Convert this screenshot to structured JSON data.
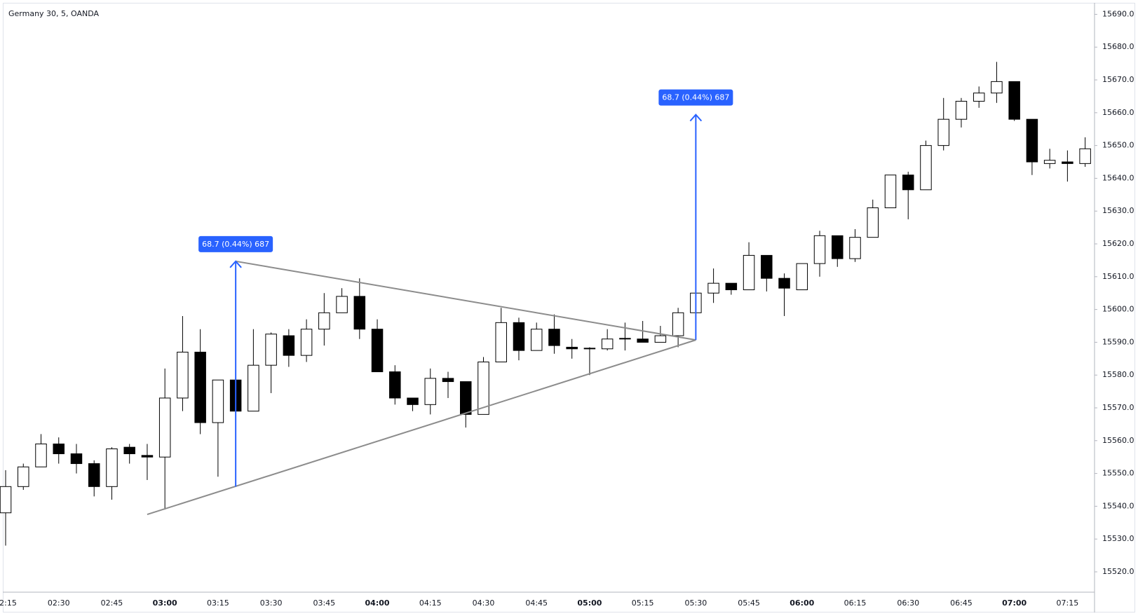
{
  "chart_data": {
    "type": "candlestick",
    "title": "Germany 30, 5, OANDA",
    "categories": [
      "02:15",
      null,
      null,
      "02:30",
      null,
      null,
      "02:45",
      null,
      null,
      "03:00",
      null,
      null,
      "03:15",
      null,
      null,
      "03:30",
      null,
      null,
      "03:45",
      null,
      null,
      "04:00",
      null,
      null,
      "04:15",
      null,
      null,
      "04:30",
      null,
      null,
      "04:45",
      null,
      null,
      "05:00",
      null,
      null,
      "05:15",
      null,
      null,
      "05:30",
      null,
      null,
      "05:45",
      null,
      null,
      "06:00",
      null,
      null,
      "06:15",
      null,
      null,
      "06:30",
      null,
      null,
      "06:45",
      null,
      null,
      "07:00",
      null,
      null,
      "07:15",
      null
    ],
    "open": [
      15538,
      15546,
      15552,
      15559,
      15556,
      15553,
      15546,
      15558,
      15555.5,
      15555,
      15573,
      15587,
      15565.5,
      15578.5,
      15569,
      15583,
      15592,
      15586,
      15594,
      15599,
      15604,
      15594,
      15581,
      15573,
      15571,
      15579,
      15578,
      15568,
      15584,
      15596,
      15587.5,
      15594,
      15588.5,
      15588,
      15588,
      15591,
      15591,
      15590,
      15592,
      15599,
      15605,
      15608,
      15606,
      15616.5,
      15609.5,
      15606,
      15614,
      15622.5,
      15615.5,
      15622,
      15631,
      15641,
      15636.5,
      15650,
      15658,
      15663.5,
      15666,
      15669.5,
      15658,
      15644.5,
      15645,
      15644.5
    ],
    "high": [
      15551,
      15553,
      15562,
      15561,
      15559,
      15554,
      15558,
      15559,
      15559,
      15582,
      15598,
      15594,
      15578.5,
      15580,
      15594,
      15593,
      15594,
      15597,
      15605,
      15606.5,
      15609.5,
      15597,
      15583,
      15573,
      15582,
      15581,
      15578,
      15585.5,
      15600.5,
      15597.5,
      15596,
      15598.5,
      15591,
      15588.5,
      15594,
      15596,
      15596.5,
      15595,
      15600.5,
      15605,
      15612.5,
      15608,
      15620.5,
      15616.5,
      15611,
      15614,
      15624,
      15622.5,
      15624.5,
      15633.5,
      15641,
      15642,
      15651.5,
      15664.5,
      15664.5,
      15668,
      15675.5,
      15669.5,
      15658,
      15649,
      15648.5,
      15652.5
    ],
    "low": [
      15528,
      15545,
      15552,
      15553,
      15550,
      15543,
      15542,
      15553,
      15548,
      15539,
      15569,
      15562,
      15549,
      15569,
      15569,
      15574.5,
      15582.5,
      15584,
      15589,
      15599,
      15591,
      15581,
      15571,
      15569,
      15568,
      15573,
      15564,
      15568,
      15584,
      15584.5,
      15587.5,
      15586.5,
      15585,
      15580,
      15587.5,
      15587.5,
      15590,
      15590,
      15588.5,
      15599,
      15602,
      15604.5,
      15606,
      15605.5,
      15598,
      15606,
      15610,
      15613,
      15614.5,
      15622,
      15631,
      15627.5,
      15636.5,
      15648.5,
      15655.5,
      15661.5,
      15663,
      15657.5,
      15641,
      15643,
      15639,
      15643.5
    ],
    "close": [
      15546,
      15552,
      15559,
      15556,
      15553,
      15546,
      15557.5,
      15556,
      15555,
      15573,
      15587,
      15565.5,
      15578.5,
      15569,
      15583,
      15592.5,
      15586,
      15594,
      15599,
      15604,
      15594,
      15581,
      15573,
      15571,
      15579,
      15578,
      15568,
      15584,
      15596,
      15587.5,
      15594,
      15589,
      15588,
      15588.2,
      15591,
      15591.2,
      15590,
      15592,
      15599,
      15605,
      15608,
      15606,
      15616.5,
      15609.5,
      15606.5,
      15614,
      15622.5,
      15615.5,
      15622,
      15631,
      15641,
      15636.5,
      15650,
      15658,
      15663.5,
      15666,
      15669.5,
      15658,
      15645,
      15645.5,
      15644.5,
      15649
    ],
    "up_color": "#ffffff",
    "down_color": "#000000",
    "wick_color": "#000000",
    "xlim": [
      -0.12,
      61.53
    ],
    "ylim": [
      15513.8,
      15693.3
    ],
    "yticks": [
      {
        "value": 15520,
        "label": "15520.0"
      },
      {
        "value": 15530,
        "label": "15530.0"
      },
      {
        "value": 15540,
        "label": "15540.0"
      },
      {
        "value": 15550,
        "label": "15550.0"
      },
      {
        "value": 15560,
        "label": "15560.0"
      },
      {
        "value": 15570,
        "label": "15570.0"
      },
      {
        "value": 15580,
        "label": "15580.0"
      },
      {
        "value": 15590,
        "label": "15590.0"
      },
      {
        "value": 15600,
        "label": "15600.0"
      },
      {
        "value": 15610,
        "label": "15610.0"
      },
      {
        "value": 15620,
        "label": "15620.0"
      },
      {
        "value": 15630,
        "label": "15630.0"
      },
      {
        "value": 15640,
        "label": "15640.0"
      },
      {
        "value": 15650,
        "label": "15650.0"
      },
      {
        "value": 15660,
        "label": "15660.0"
      },
      {
        "value": 15670,
        "label": "15670.0"
      },
      {
        "value": 15680,
        "label": "15680.0"
      },
      {
        "value": 15690,
        "label": "15690.0"
      }
    ],
    "trendlines": [
      {
        "x": [
          13,
          39
        ],
        "y": [
          15614.7,
          15590.7
        ],
        "color": "#8c8c8c"
      },
      {
        "x": [
          8,
          39
        ],
        "y": [
          15537.5,
          15590.7
        ],
        "color": "#8c8c8c"
      }
    ],
    "measures": [
      {
        "x": 13,
        "from": 15546,
        "to": 15614.7,
        "label": "68.7 (0.44%) 687",
        "color": "#2962ff"
      },
      {
        "x": 39,
        "from": 15590.7,
        "to": 15659.4,
        "label": "68.7 (0.44%) 687",
        "color": "#2962ff"
      }
    ]
  }
}
